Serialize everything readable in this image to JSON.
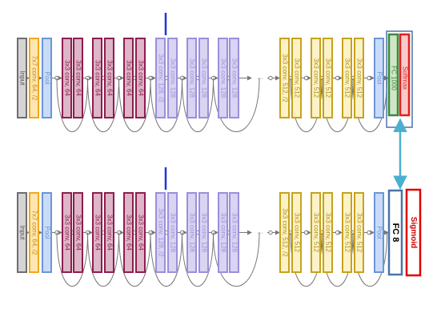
{
  "colors": {
    "input_fill": "#d4d4d4",
    "input_stroke": "#6e6e6e",
    "input_text": "#555555",
    "conv7_fill": "#fde6b1",
    "conv7_stroke": "#f4a81c",
    "conv7_text": "#c98a18",
    "pool_fill": "#c9dcf7",
    "pool_stroke": "#6b95d8",
    "pool_text": "#6b95d8",
    "c64_fill": "#ddb6c8",
    "c64_stroke": "#8e1d4e",
    "c64_text": "#8e1d4e",
    "c128_fill": "#d9d4f2",
    "c128_stroke": "#9b8fdb",
    "c128_text": "#9b8fdb",
    "c512_fill": "#fbf2c7",
    "c512_stroke": "#c7a21b",
    "c512_text": "#b08c10",
    "fc1000_fill": "#cfe7c7",
    "fc1000_stroke": "#3c8a3c",
    "fc1000_text": "#3c8a3c",
    "softmax_fill": "#f8cccc",
    "softmax_stroke": "#e22020",
    "softmax_text": "#e22020",
    "fc8_stroke": "#4a74a8",
    "sigmoid_stroke": "#e00000",
    "highlight_box": "#4a74a8",
    "marker": "#1e35d8",
    "swap_arrow": "#4ab0d0",
    "line": "#777777"
  },
  "networks": [
    {
      "id": "original",
      "blocks": [
        {
          "type": "input",
          "label": "Input"
        },
        {
          "type": "conv7",
          "label": "7x7 conv, 64, /2"
        },
        {
          "type": "pool",
          "label": "Pool"
        },
        {
          "type": "c64",
          "label": "3x3 conv, 64"
        },
        {
          "type": "c64",
          "label": "3x3 conv, 64"
        },
        {
          "type": "c64",
          "label": "3x3 conv, 64"
        },
        {
          "type": "c64",
          "label": "3x3 conv, 64"
        },
        {
          "type": "c64",
          "label": "3x3 conv, 64"
        },
        {
          "type": "c64",
          "label": "3x3 conv, 64"
        },
        {
          "type": "c128",
          "label": "3x3 conv, 128, /2"
        },
        {
          "type": "c128",
          "label": "3x3 conv, 128"
        },
        {
          "type": "c128",
          "label": "3x3 conv, 128"
        },
        {
          "type": "c128",
          "label": "3x3 conv, 128"
        },
        {
          "type": "c128",
          "label": "3x3 conv, 128"
        },
        {
          "type": "c128",
          "label": "3x3 conv, 128"
        },
        {
          "type": "c512",
          "label": "3x3 conv, 512, /2"
        },
        {
          "type": "c512",
          "label": "3x3 conv, 512"
        },
        {
          "type": "c512",
          "label": "3x3 conv, 512"
        },
        {
          "type": "c512",
          "label": "3x3 conv, 512"
        },
        {
          "type": "c512",
          "label": "3x3 conv, 512"
        },
        {
          "type": "c512",
          "label": "3x3 conv, 512"
        },
        {
          "type": "pool",
          "label": "Pool"
        }
      ],
      "head": [
        {
          "type": "fc1000",
          "label": "FC 1000"
        },
        {
          "type": "softmax",
          "label": "Softmax"
        }
      ]
    },
    {
      "id": "modified",
      "blocks": [
        {
          "type": "input",
          "label": "Input"
        },
        {
          "type": "conv7",
          "label": "7x7 conv, 64, /2"
        },
        {
          "type": "pool",
          "label": "Pool"
        },
        {
          "type": "c64",
          "label": "3x3 conv, 64"
        },
        {
          "type": "c64",
          "label": "3x3 conv, 64"
        },
        {
          "type": "c64",
          "label": "3x3 conv, 64"
        },
        {
          "type": "c64",
          "label": "3x3 conv, 64"
        },
        {
          "type": "c64",
          "label": "3x3 conv, 64"
        },
        {
          "type": "c64",
          "label": "3x3 conv, 64"
        },
        {
          "type": "c128",
          "label": "3x3 conv, 128, /2"
        },
        {
          "type": "c128",
          "label": "3x3 conv, 128"
        },
        {
          "type": "c128",
          "label": "3x3 conv, 128"
        },
        {
          "type": "c128",
          "label": "3x3 conv, 128"
        },
        {
          "type": "c128",
          "label": "3x3 conv, 128"
        },
        {
          "type": "c128",
          "label": "3x3 conv, 128"
        },
        {
          "type": "c512",
          "label": "3x3 conv, 512, /2"
        },
        {
          "type": "c512",
          "label": "3x3 conv, 512"
        },
        {
          "type": "c512",
          "label": "3x3 conv, 512"
        },
        {
          "type": "c512",
          "label": "3x3 conv, 512"
        },
        {
          "type": "c512",
          "label": "3x3 conv, 512"
        },
        {
          "type": "c512",
          "label": "3x3 conv, 512"
        },
        {
          "type": "pool",
          "label": "Pool"
        }
      ],
      "head": [
        {
          "type": "fc8",
          "label": "FC 8"
        },
        {
          "type": "sigmoid",
          "label": "Sigmoid"
        }
      ]
    }
  ],
  "ellipsis": "···"
}
